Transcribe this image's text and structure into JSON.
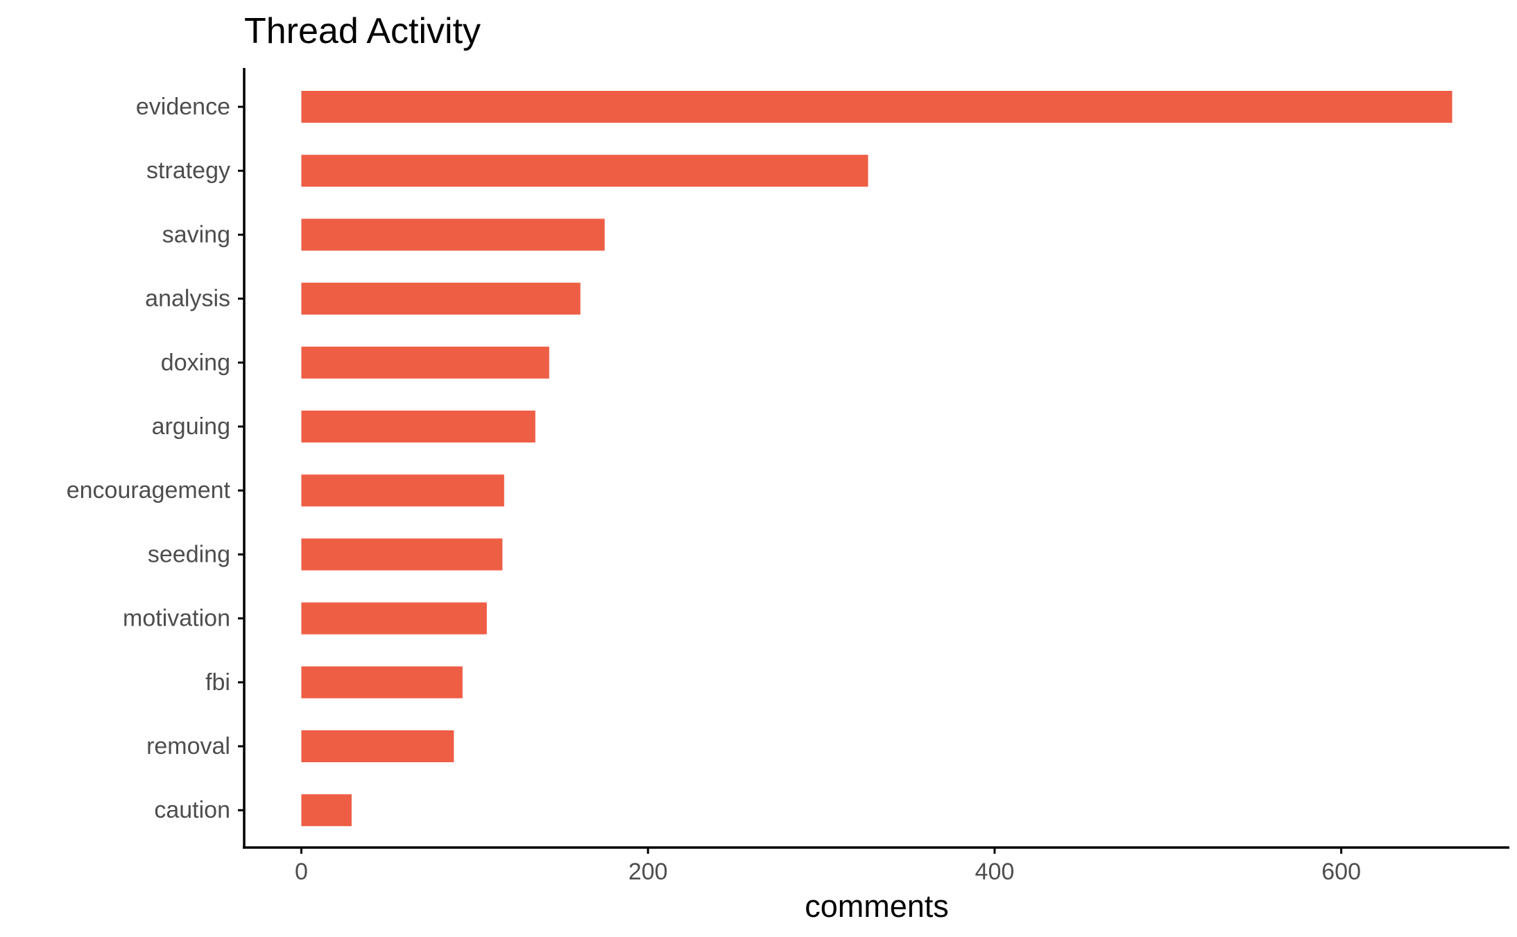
{
  "chart_data": {
    "type": "bar",
    "orientation": "horizontal",
    "title": "Thread Activity",
    "xlabel": "comments",
    "ylabel": "",
    "categories": [
      "evidence",
      "strategy",
      "saving",
      "analysis",
      "doxing",
      "arguing",
      "encouragement",
      "seeding",
      "motivation",
      "fbi",
      "removal",
      "caution"
    ],
    "values": [
      664,
      327,
      175,
      161,
      143,
      135,
      117,
      116,
      107,
      93,
      88,
      29
    ],
    "xlim": [
      -33,
      697
    ],
    "xticks": [
      0,
      200,
      400,
      600
    ],
    "bar_color": "#EE5E45",
    "grid": false,
    "legend": "none"
  }
}
